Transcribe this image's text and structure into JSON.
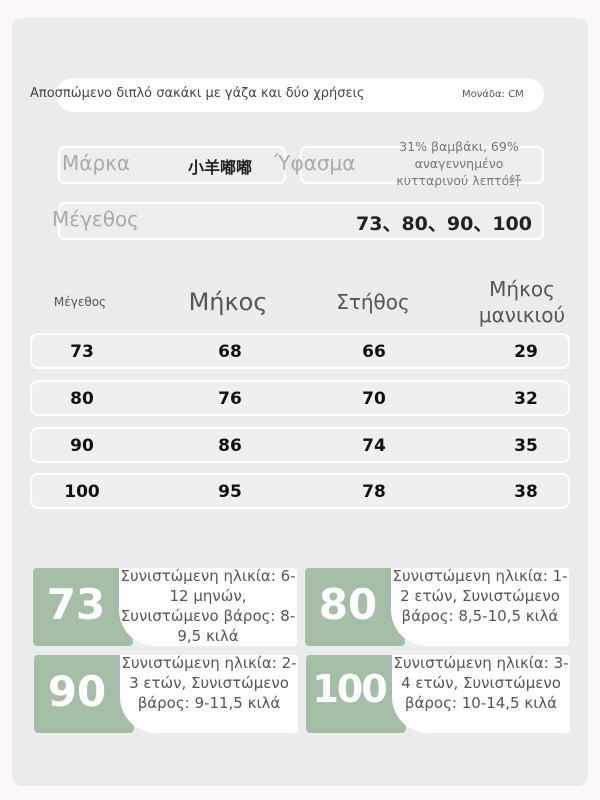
{
  "header": {
    "title": "Αποσπώμενο διπλό σακάκι με γάζα και δύο χρήσεις",
    "unit": "Μονάδα: CM"
  },
  "info": {
    "brand_label": "Μάρκα",
    "brand_value": "小羊嘟嘟",
    "fabric_label": "Ύφασμα",
    "fabric_value": "31% βαμβάκι, 69% αναγεννημένο κυτταρινού λεπτό纤",
    "size_label": "Μέγεθος",
    "size_value": "73、80、90、100"
  },
  "table": {
    "headers": [
      "Μέγεθος",
      "Μήκος",
      "Στήθος",
      "Μήκος μανικιού"
    ],
    "rows": [
      [
        "73",
        "68",
        "66",
        "29"
      ],
      [
        "80",
        "76",
        "70",
        "32"
      ],
      [
        "90",
        "86",
        "74",
        "35"
      ],
      [
        "100",
        "95",
        "78",
        "38"
      ]
    ]
  },
  "sizes": [
    {
      "size": "73",
      "desc": "Συνιστώμενη ηλικία: 6-12 μηνών, Συνιστώμενο βάρος: 8-9,5 κιλά"
    },
    {
      "size": "80",
      "desc": "Συνιστώμενη ηλικία: 1-2 ετών, Συνιστώμενο βάρος: 8,5-10,5 κιλά"
    },
    {
      "size": "90",
      "desc": "Συνιστώμενη ηλικία: 2-3 ετών, Συνιστώμενο βάρος: 9-11,5 κιλά"
    },
    {
      "size": "100",
      "desc": "Συνιστώμενη ηλικία: 3-4 ετών, Συνιστώμενο βάρος: 10-14,5 κιλά"
    }
  ],
  "colors": {
    "accent": "#a6bda8",
    "background": "#ececec"
  }
}
